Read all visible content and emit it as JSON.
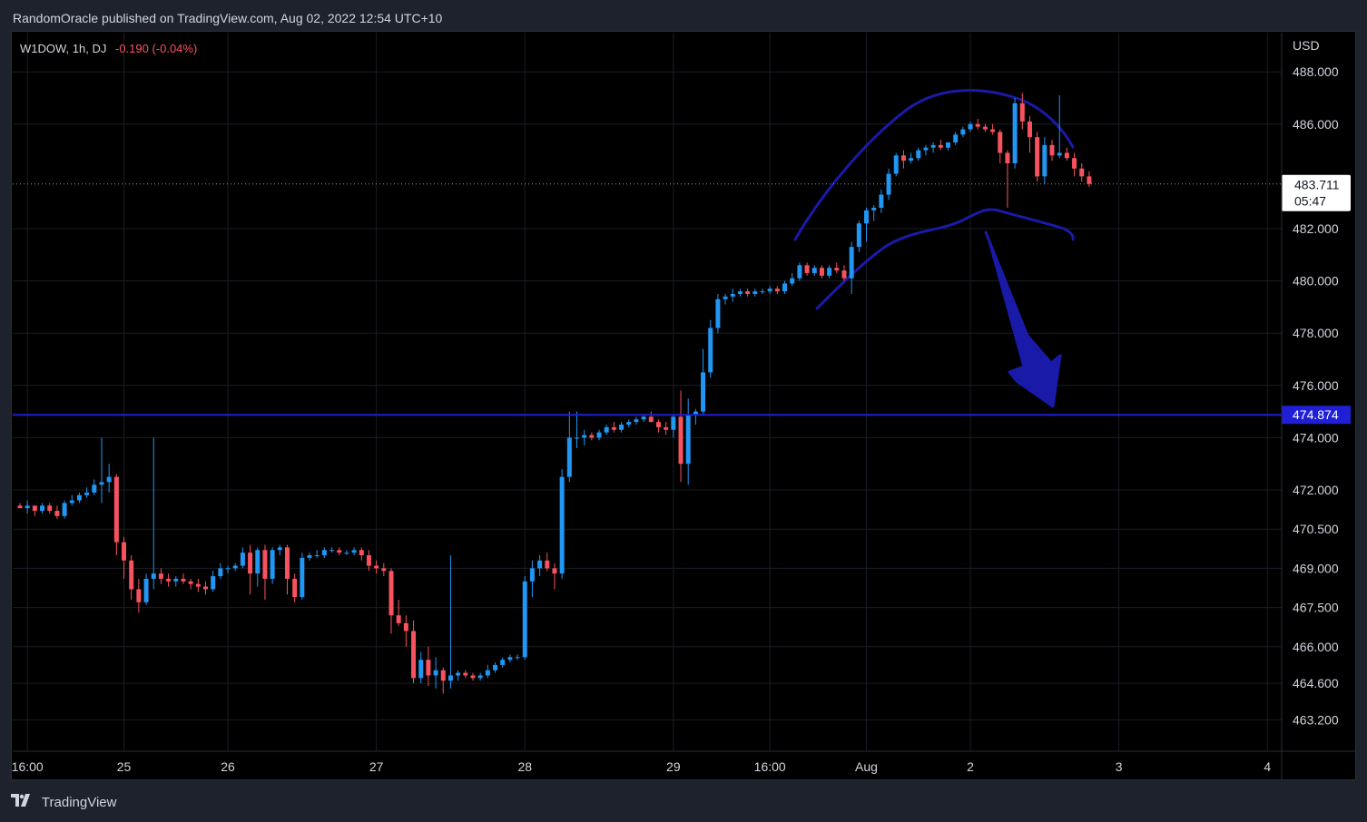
{
  "header": {
    "text": "RandomOracle published on TradingView.com, Aug 02, 2022 12:54 UTC+10"
  },
  "legend": {
    "symbol": "W1DOW, 1h, DJ",
    "change": "-0.190 (-0.04%)"
  },
  "footer": {
    "brand": "TradingView",
    "logo_icon": "tradingview-logo-icon"
  },
  "colors": {
    "up": "#2196f3",
    "down": "#f7525f",
    "drawing": "#1a1aa8",
    "level_line": "#1f1fd6",
    "background": "#000000",
    "chrome": "#1e222d"
  },
  "chart_data": {
    "type": "candlestick",
    "interval": "1h",
    "currency_label": "USD",
    "y_range": [
      462.0,
      489.5
    ],
    "y_ticks": [
      {
        "label": "488.000",
        "value": 488.0
      },
      {
        "label": "486.000",
        "value": 486.0
      },
      {
        "label": "482.000",
        "value": 482.0
      },
      {
        "label": "480.000",
        "value": 480.0
      },
      {
        "label": "478.000",
        "value": 478.0
      },
      {
        "label": "476.000",
        "value": 476.0
      },
      {
        "label": "474.000",
        "value": 474.0
      },
      {
        "label": "472.000",
        "value": 472.0
      },
      {
        "label": "470.500",
        "value": 470.5
      },
      {
        "label": "469.000",
        "value": 469.0
      },
      {
        "label": "467.500",
        "value": 467.5
      },
      {
        "label": "466.000",
        "value": 466.0
      },
      {
        "label": "464.600",
        "value": 464.6
      },
      {
        "label": "463.200",
        "value": 463.2
      }
    ],
    "x_ticks": [
      {
        "label": "16:00",
        "index": 1
      },
      {
        "label": "25",
        "index": 14
      },
      {
        "label": "26",
        "index": 28
      },
      {
        "label": "27",
        "index": 48
      },
      {
        "label": "28",
        "index": 68
      },
      {
        "label": "29",
        "index": 88
      },
      {
        "label": "16:00",
        "index": 101
      },
      {
        "label": "Aug",
        "index": 114
      },
      {
        "label": "2",
        "index": 128
      },
      {
        "label": "3",
        "index": 148
      },
      {
        "label": "4",
        "index": 168
      }
    ],
    "last_price": {
      "label": "483.711",
      "countdown": "05:47",
      "value": 483.711
    },
    "horizontal_level": {
      "label": "474.874",
      "value": 474.874
    },
    "grid": true,
    "candles": [
      [
        471.4,
        471.5,
        471.3,
        471.3
      ],
      [
        471.3,
        471.6,
        471.1,
        471.4
      ],
      [
        471.4,
        471.4,
        471.0,
        471.2
      ],
      [
        471.2,
        471.5,
        471.1,
        471.4
      ],
      [
        471.4,
        471.5,
        471.1,
        471.2
      ],
      [
        471.2,
        471.4,
        470.9,
        471.0
      ],
      [
        471.0,
        471.6,
        470.9,
        471.5
      ],
      [
        471.5,
        471.8,
        471.4,
        471.6
      ],
      [
        471.6,
        471.9,
        471.5,
        471.8
      ],
      [
        471.8,
        472.1,
        471.7,
        471.9
      ],
      [
        471.9,
        472.4,
        471.8,
        472.2
      ],
      [
        472.2,
        474.0,
        471.5,
        472.3
      ],
      [
        472.3,
        473.0,
        471.9,
        472.5
      ],
      [
        472.5,
        472.6,
        469.5,
        470.0
      ],
      [
        470.0,
        470.2,
        468.6,
        469.3
      ],
      [
        469.3,
        469.5,
        467.8,
        468.2
      ],
      [
        468.2,
        468.6,
        467.3,
        467.7
      ],
      [
        467.7,
        468.8,
        467.6,
        468.6
      ],
      [
        468.6,
        474.0,
        468.2,
        468.8
      ],
      [
        468.8,
        469.0,
        468.4,
        468.6
      ],
      [
        468.6,
        468.8,
        468.3,
        468.5
      ],
      [
        468.5,
        468.7,
        468.3,
        468.6
      ],
      [
        468.6,
        468.8,
        468.4,
        468.5
      ],
      [
        468.5,
        468.6,
        468.2,
        468.4
      ],
      [
        468.4,
        468.6,
        468.1,
        468.3
      ],
      [
        468.3,
        468.5,
        468.0,
        468.2
      ],
      [
        468.2,
        468.9,
        468.1,
        468.7
      ],
      [
        468.7,
        469.2,
        468.6,
        469.0
      ],
      [
        469.0,
        469.1,
        468.8,
        469.0
      ],
      [
        469.0,
        469.2,
        468.9,
        469.1
      ],
      [
        469.1,
        469.8,
        469.0,
        469.6
      ],
      [
        469.6,
        469.9,
        468.0,
        468.8
      ],
      [
        468.8,
        469.8,
        468.3,
        469.7
      ],
      [
        469.7,
        469.9,
        467.8,
        468.6
      ],
      [
        468.6,
        469.8,
        468.4,
        469.7
      ],
      [
        469.7,
        469.9,
        469.5,
        469.8
      ],
      [
        469.8,
        469.9,
        468.0,
        468.6
      ],
      [
        468.6,
        468.8,
        467.7,
        467.9
      ],
      [
        467.9,
        469.6,
        467.8,
        469.4
      ],
      [
        469.4,
        469.6,
        469.3,
        469.5
      ],
      [
        469.5,
        469.7,
        469.4,
        469.5
      ],
      [
        469.5,
        469.8,
        469.4,
        469.7
      ],
      [
        469.7,
        469.8,
        469.6,
        469.7
      ],
      [
        469.7,
        469.8,
        469.5,
        469.6
      ],
      [
        469.6,
        469.7,
        469.5,
        469.6
      ],
      [
        469.6,
        469.8,
        469.5,
        469.7
      ],
      [
        469.7,
        469.8,
        469.3,
        469.5
      ],
      [
        469.5,
        469.7,
        468.9,
        469.1
      ],
      [
        469.1,
        469.3,
        468.8,
        469.0
      ],
      [
        469.0,
        469.2,
        468.7,
        468.9
      ],
      [
        468.9,
        469.0,
        466.5,
        467.2
      ],
      [
        467.2,
        467.8,
        466.8,
        466.9
      ],
      [
        466.9,
        467.2,
        466.0,
        466.6
      ],
      [
        466.6,
        467.0,
        464.6,
        464.8
      ],
      [
        464.8,
        465.8,
        464.6,
        465.5
      ],
      [
        465.5,
        466.0,
        464.5,
        464.9
      ],
      [
        464.9,
        465.6,
        464.4,
        465.1
      ],
      [
        465.1,
        465.2,
        464.2,
        464.7
      ],
      [
        464.7,
        469.5,
        464.4,
        464.9
      ],
      [
        464.9,
        465.1,
        464.7,
        465.0
      ],
      [
        465.0,
        465.1,
        464.8,
        464.9
      ],
      [
        464.9,
        465.0,
        464.7,
        464.8
      ],
      [
        464.8,
        465.0,
        464.7,
        464.9
      ],
      [
        464.9,
        465.3,
        464.8,
        465.1
      ],
      [
        465.1,
        465.4,
        465.0,
        465.3
      ],
      [
        465.3,
        465.6,
        465.2,
        465.5
      ],
      [
        465.5,
        465.7,
        465.4,
        465.6
      ],
      [
        465.6,
        465.7,
        465.5,
        465.6
      ],
      [
        465.6,
        468.7,
        465.5,
        468.5
      ],
      [
        468.5,
        469.3,
        467.9,
        469.0
      ],
      [
        469.0,
        469.5,
        468.7,
        469.3
      ],
      [
        469.3,
        469.6,
        468.9,
        469.0
      ],
      [
        469.0,
        469.2,
        468.2,
        468.8
      ],
      [
        468.8,
        472.8,
        468.6,
        472.5
      ],
      [
        472.5,
        475.0,
        472.3,
        474.0
      ],
      [
        474.0,
        475.0,
        473.6,
        474.0
      ],
      [
        474.0,
        474.3,
        473.7,
        474.1
      ],
      [
        474.1,
        474.2,
        473.9,
        474.0
      ],
      [
        474.0,
        474.3,
        473.9,
        474.2
      ],
      [
        474.2,
        474.5,
        474.1,
        474.4
      ],
      [
        474.4,
        474.6,
        474.2,
        474.3
      ],
      [
        474.3,
        474.6,
        474.2,
        474.5
      ],
      [
        474.5,
        474.7,
        474.4,
        474.6
      ],
      [
        474.6,
        474.8,
        474.5,
        474.7
      ],
      [
        474.7,
        474.9,
        474.6,
        474.8
      ],
      [
        474.8,
        475.0,
        474.6,
        474.6
      ],
      [
        474.6,
        474.7,
        474.2,
        474.4
      ],
      [
        474.4,
        474.6,
        474.1,
        474.3
      ],
      [
        474.3,
        474.9,
        474.0,
        474.8
      ],
      [
        474.8,
        475.8,
        472.3,
        473.0
      ],
      [
        473.0,
        475.5,
        472.2,
        474.9
      ],
      [
        474.9,
        475.1,
        474.5,
        475.0
      ],
      [
        475.0,
        477.4,
        474.9,
        476.5
      ],
      [
        476.5,
        478.5,
        476.3,
        478.2
      ],
      [
        478.2,
        479.5,
        478.0,
        479.3
      ],
      [
        479.3,
        479.5,
        479.1,
        479.4
      ],
      [
        479.4,
        479.7,
        479.2,
        479.5
      ],
      [
        479.5,
        479.7,
        479.4,
        479.6
      ],
      [
        479.6,
        479.7,
        479.4,
        479.5
      ],
      [
        479.5,
        479.7,
        479.4,
        479.6
      ],
      [
        479.6,
        479.7,
        479.5,
        479.6
      ],
      [
        479.6,
        479.8,
        479.5,
        479.7
      ],
      [
        479.7,
        479.8,
        479.5,
        479.6
      ],
      [
        479.6,
        480.0,
        479.5,
        479.9
      ],
      [
        479.9,
        480.3,
        479.8,
        480.1
      ],
      [
        480.1,
        480.7,
        480.0,
        480.6
      ],
      [
        480.6,
        480.7,
        480.2,
        480.3
      ],
      [
        480.3,
        480.6,
        480.2,
        480.5
      ],
      [
        480.5,
        480.6,
        480.1,
        480.2
      ],
      [
        480.2,
        480.6,
        480.1,
        480.5
      ],
      [
        480.5,
        480.7,
        480.3,
        480.4
      ],
      [
        480.4,
        480.6,
        480.0,
        480.1
      ],
      [
        480.1,
        481.5,
        479.5,
        481.3
      ],
      [
        481.3,
        482.3,
        481.1,
        482.2
      ],
      [
        482.2,
        482.8,
        481.5,
        482.7
      ],
      [
        482.7,
        482.9,
        482.3,
        482.8
      ],
      [
        482.8,
        483.5,
        482.6,
        483.3
      ],
      [
        483.3,
        484.3,
        483.1,
        484.1
      ],
      [
        484.1,
        484.9,
        484.0,
        484.8
      ],
      [
        484.8,
        485.0,
        484.3,
        484.6
      ],
      [
        484.6,
        484.9,
        484.5,
        484.7
      ],
      [
        484.7,
        485.1,
        484.6,
        485.0
      ],
      [
        485.0,
        485.2,
        484.8,
        485.1
      ],
      [
        485.1,
        485.3,
        484.9,
        485.2
      ],
      [
        485.2,
        485.4,
        485.0,
        485.1
      ],
      [
        485.1,
        485.3,
        485.0,
        485.3
      ],
      [
        485.3,
        485.7,
        485.2,
        485.6
      ],
      [
        485.6,
        485.9,
        485.5,
        485.8
      ],
      [
        485.8,
        486.1,
        485.7,
        486.0
      ],
      [
        486.0,
        486.2,
        485.8,
        485.9
      ],
      [
        485.9,
        486.0,
        485.7,
        485.8
      ],
      [
        485.8,
        486.0,
        485.6,
        485.7
      ],
      [
        485.7,
        485.8,
        484.5,
        484.9
      ],
      [
        484.9,
        485.0,
        482.8,
        484.5
      ],
      [
        484.5,
        487.0,
        484.3,
        486.8
      ],
      [
        486.8,
        487.2,
        485.8,
        486.1
      ],
      [
        486.1,
        486.3,
        484.9,
        485.5
      ],
      [
        485.5,
        485.7,
        483.8,
        484.0
      ],
      [
        484.0,
        485.5,
        483.7,
        485.2
      ],
      [
        485.2,
        485.4,
        484.6,
        484.8
      ],
      [
        484.8,
        487.1,
        484.7,
        484.9
      ],
      [
        484.9,
        485.1,
        484.6,
        484.7
      ],
      [
        484.7,
        484.9,
        484.0,
        484.3
      ],
      [
        484.3,
        484.5,
        483.8,
        484.0
      ],
      [
        484.0,
        484.2,
        483.6,
        483.711
      ]
    ]
  }
}
